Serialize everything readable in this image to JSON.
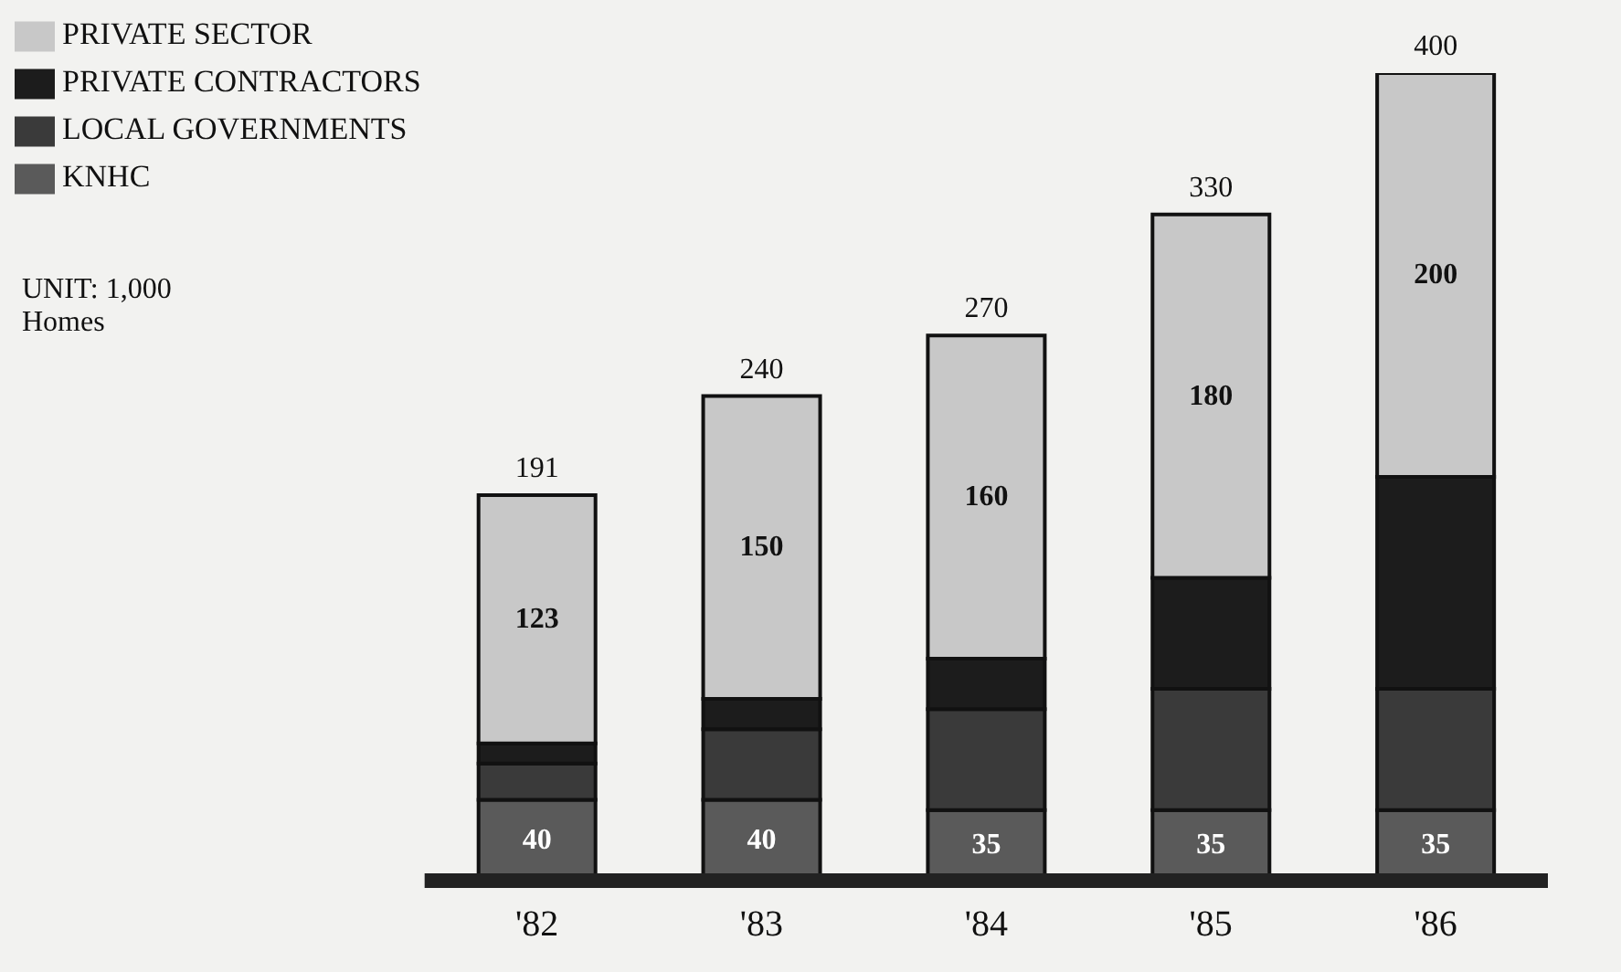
{
  "chart_data": {
    "type": "bar",
    "stacked": true,
    "categories": [
      "'82",
      "'83",
      "'84",
      "'85",
      "'86"
    ],
    "series": [
      {
        "name": "KNHC",
        "color": "#5a5a5a",
        "values": [
          40,
          40,
          35,
          35,
          35
        ],
        "value_labels": [
          "40",
          "40",
          "35",
          "35",
          "35"
        ]
      },
      {
        "name": "LOCAL GOVERNMENTS",
        "color": "#3a3a3a",
        "values": [
          18,
          35,
          50,
          60,
          60
        ]
      },
      {
        "name": "PRIVATE CONTRACTORS",
        "color": "#1c1c1c",
        "values": [
          10,
          15,
          25,
          55,
          105
        ]
      },
      {
        "name": "PRIVATE SECTOR",
        "color": "#c8c8c8",
        "values": [
          123,
          150,
          160,
          180,
          200
        ],
        "value_labels": [
          "123",
          "150",
          "160",
          "180",
          "200"
        ]
      }
    ],
    "totals": [
      "191",
      "240",
      "270",
      "330",
      "400"
    ],
    "legend": "top left",
    "annotations": [
      "UNIT: 1,000 Homes"
    ]
  }
}
